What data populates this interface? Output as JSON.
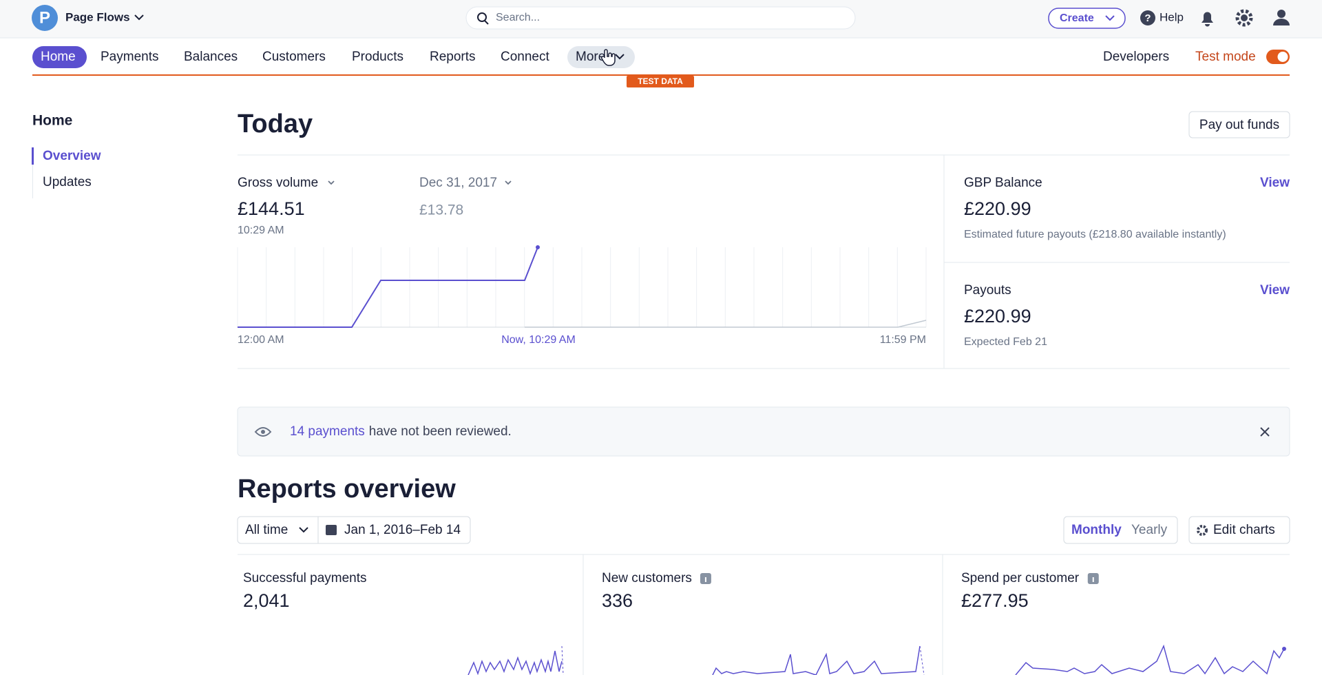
{
  "topbar": {
    "account": "Page Flows",
    "search": "Search...",
    "create": "Create",
    "help": "Help"
  },
  "nav": {
    "items": [
      "Home",
      "Payments",
      "Balances",
      "Customers",
      "Products",
      "Reports",
      "Connect",
      "More"
    ],
    "developers": "Developers",
    "test_mode": "Test mode",
    "badge": "TEST DATA"
  },
  "sidebar": {
    "title": "Home",
    "items": [
      "Overview",
      "Updates"
    ]
  },
  "today": {
    "title": "Today",
    "payout_button": "Pay out funds",
    "metric": "Gross volume",
    "metric_value": "£144.51",
    "metric_time": "10:29 AM",
    "compare_date": "Dec 31, 2017",
    "compare_value": "£13.78",
    "axis": {
      "start": "12:00 AM",
      "now": "Now, 10:29 AM",
      "end": "11:59 PM"
    },
    "balance": {
      "title": "GBP Balance",
      "link": "View",
      "value": "£220.99",
      "note": "Estimated future payouts (£218.80 available instantly)"
    },
    "payouts": {
      "title": "Payouts",
      "link": "View",
      "value": "£220.99",
      "note": "Expected Feb 21"
    }
  },
  "notice": {
    "link": "14 payments",
    "text": "have not been reviewed."
  },
  "reports": {
    "title": "Reports overview",
    "range": "All time",
    "dates": "Jan 1, 2016–Feb 14",
    "monthly": "Monthly",
    "yearly": "Yearly",
    "edit": "Edit charts",
    "cards": [
      {
        "title": "Successful payments",
        "value": "2,041"
      },
      {
        "title": "New customers",
        "value": "336"
      },
      {
        "title": "Spend per customer",
        "value": "£277.95"
      }
    ]
  }
}
